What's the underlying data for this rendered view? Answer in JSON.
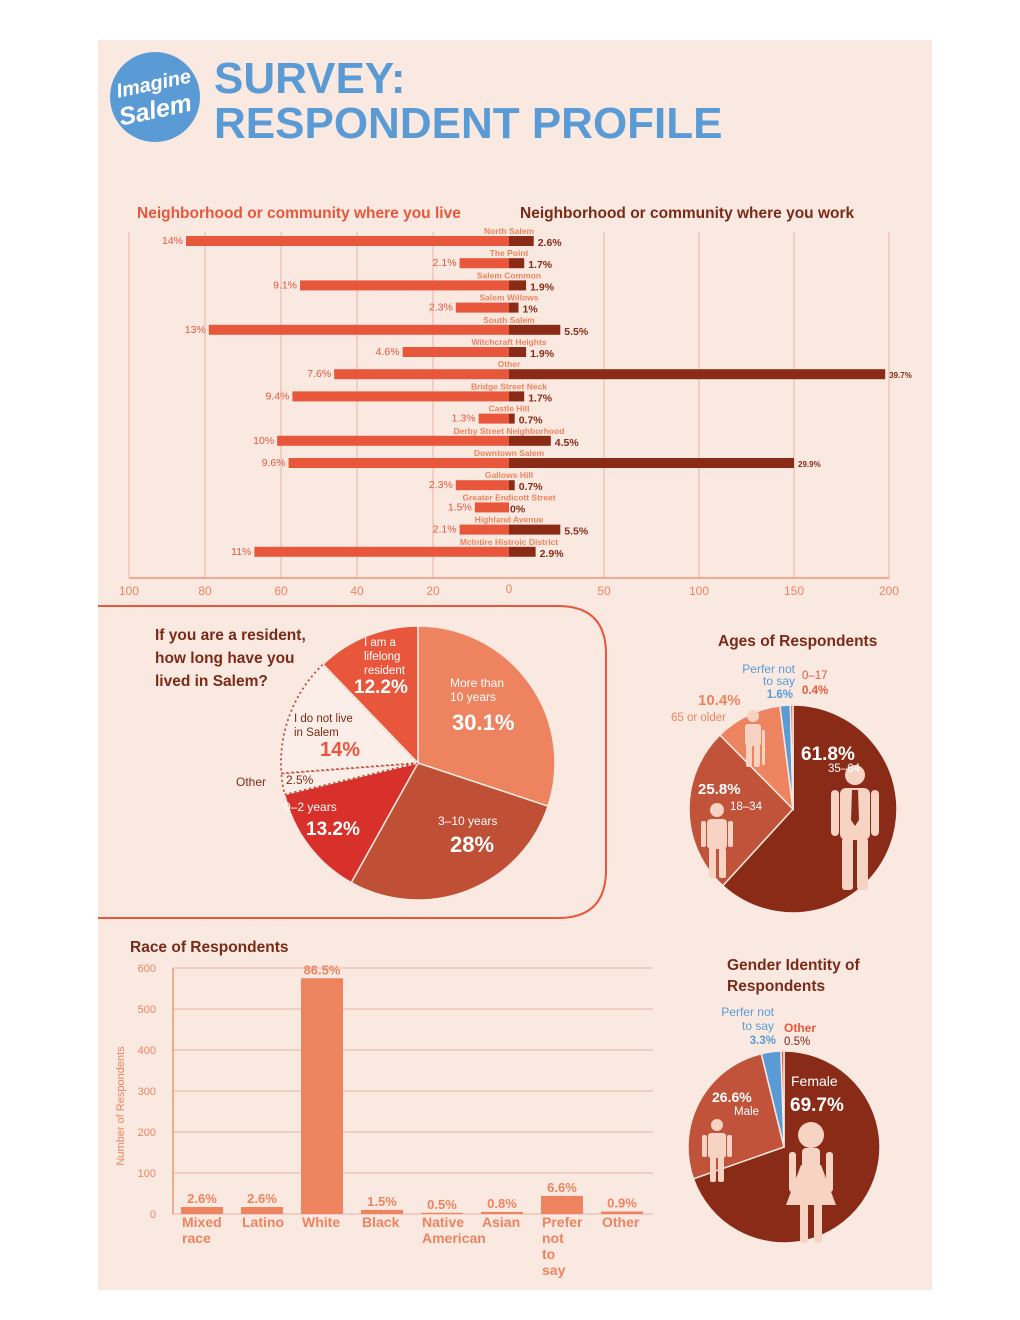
{
  "header": {
    "logo_line1": "Imagine",
    "logo_line2": "Salem",
    "title_line1": "SURVEY:",
    "title_line2": "RESPONDENT PROFILE"
  },
  "colors": {
    "background": "#f9e9e1",
    "title_blue": "#5b9bd5",
    "live": "#e8573b",
    "work": "#8a2b17",
    "dark_text": "#7b2a17",
    "salmon": "#ee845f",
    "grid": "#e7b3a5",
    "figure": "#f7d3c4"
  },
  "chart_data": [
    {
      "type": "bar",
      "orientation": "horizontal-diverging",
      "legend": [
        "Neighborhood or community where you live",
        "Neighborhood or community where you work"
      ],
      "categories": [
        "North Salem",
        "The Point",
        "Salem Common",
        "Salem Willows",
        "South Salem",
        "Witchcraft Heights",
        "Other",
        "Bridge Street Neck",
        "Castle Hill",
        "Derby Street Neighborhood",
        "Downtown Salem",
        "Gallows Hill",
        "Greater Endicott Street",
        "Highland Avenue",
        "McIntire Histroic District"
      ],
      "series": [
        {
          "name": "Neighborhood or community where you live",
          "labels": [
            "14%",
            "2.1%",
            "9.1%",
            "2.3%",
            "13%",
            "4.6%",
            "7.6%",
            "9.4%",
            "1.3%",
            "10%",
            "9.6%",
            "2.3%",
            "1.5%",
            "2.1%",
            "11%"
          ],
          "values": [
            85,
            13,
            55,
            14,
            79,
            28,
            46,
            57,
            8,
            61,
            58,
            14,
            9,
            13,
            67
          ]
        },
        {
          "name": "Neighborhood or community where you work",
          "labels": [
            "2.6%",
            "1.7%",
            "1.9%",
            "1%",
            "5.5%",
            "1.9%",
            "39.7%",
            "1.7%",
            "0.7%",
            "4.5%",
            "29.9%",
            "0.7%",
            "0%",
            "5.5%",
            "2.9%"
          ],
          "values": [
            13,
            8,
            9,
            5,
            27,
            9,
            198,
            8,
            3,
            22,
            150,
            3,
            0,
            27,
            14
          ]
        }
      ],
      "left_ticks": [
        "100",
        "80",
        "60",
        "40",
        "20"
      ],
      "center_tick": "0",
      "right_ticks": [
        "50",
        "100",
        "150",
        "200"
      ],
      "xlim_left": [
        0,
        100
      ],
      "xlim_right": [
        0,
        200
      ],
      "grid": true
    },
    {
      "type": "pie",
      "title": "If you are a resident, how long have you lived in Salem?",
      "slices": [
        {
          "label": "More than 10 years",
          "pct": "30.1%",
          "value": 30.1
        },
        {
          "label": "3–10 years",
          "pct": "28%",
          "value": 28
        },
        {
          "label": "0–2 years",
          "pct": "13.2%",
          "value": 13.2
        },
        {
          "label": "Other",
          "pct": "2.5%",
          "value": 2.5
        },
        {
          "label": "I do not live in Salem",
          "pct": "14%",
          "value": 14
        },
        {
          "label": "I am a lifelong resident",
          "pct": "12.2%",
          "value": 12.2
        }
      ]
    },
    {
      "type": "pie",
      "title": "Ages of Respondents",
      "slices": [
        {
          "label": "35–64",
          "pct": "61.8%",
          "value": 61.8
        },
        {
          "label": "18–34",
          "pct": "25.8%",
          "value": 25.8
        },
        {
          "label": "65 or older",
          "pct": "10.4%",
          "value": 10.4
        },
        {
          "label": "Perfer not to say",
          "pct": "1.6%",
          "value": 1.6
        },
        {
          "label": "0–17",
          "pct": "0.4%",
          "value": 0.4
        }
      ]
    },
    {
      "type": "bar",
      "title": "Race of Respondents",
      "ylabel": "Number of Respondents",
      "ylim": [
        0,
        600
      ],
      "yticks": [
        "0",
        "100",
        "200",
        "300",
        "400",
        "500",
        "600"
      ],
      "categories": [
        "Mixed race",
        "Latino",
        "White",
        "Black",
        "Native American",
        "Asian",
        "Prefer not to say",
        "Other"
      ],
      "labels": [
        "2.6%",
        "2.6%",
        "86.5%",
        "1.5%",
        "0.5%",
        "0.8%",
        "6.6%",
        "0.9%"
      ],
      "values": [
        17,
        17,
        575,
        10,
        3,
        5,
        44,
        6
      ],
      "grid": true
    },
    {
      "type": "pie",
      "title": "Gender Identity of Respondents",
      "slices": [
        {
          "label": "Female",
          "pct": "69.7%",
          "value": 69.7
        },
        {
          "label": "Male",
          "pct": "26.6%",
          "value": 26.6
        },
        {
          "label": "Perfer not to say",
          "pct": "3.3%",
          "value": 3.3
        },
        {
          "label": "Other",
          "pct": "0.5%",
          "value": 0.5
        }
      ]
    }
  ]
}
